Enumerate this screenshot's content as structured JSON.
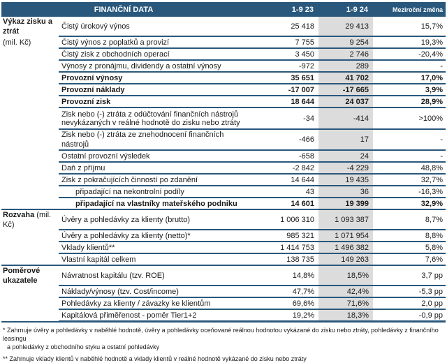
{
  "table": {
    "columns": {
      "title": "FINANČNÍ DATA",
      "period_prev": "1-9 23",
      "period_curr": "1-9 24",
      "change": "Meziroční změna"
    },
    "rows": [
      {
        "sec": "Výkaz zisku a ztrát",
        "sec_bold": true,
        "label": "Čistý úrokový výnos",
        "v23": "25 418",
        "v24": "29 413",
        "chg": "15,7%",
        "flags": []
      },
      {
        "sec": "(mil. Kč)",
        "sec_bold": false,
        "label": "Čistý výnos z poplatků a provizí",
        "v23": "7 755",
        "v24": "9 254",
        "chg": "19,3%",
        "flags": []
      },
      {
        "sec": "",
        "label": "Čistý zisk z obchodních operací",
        "v23": "3 450",
        "v24": "2 746",
        "chg": "-20,4%",
        "flags": []
      },
      {
        "sec": "",
        "label": "Výnosy z pronájmu, dividendy a ostatní výnosy",
        "v23": "-972",
        "v24": "289",
        "chg": "-",
        "flags": []
      },
      {
        "sec": "",
        "label": "Provozní výnosy",
        "v23": "35 651",
        "v24": "41 702",
        "chg": "17,0%",
        "flags": [
          "bold"
        ]
      },
      {
        "sec": "",
        "label": "Provozní náklady",
        "v23": "-17 007",
        "v24": "-17 665",
        "chg": "3,9%",
        "flags": [
          "bold"
        ]
      },
      {
        "sec": "",
        "label": "Provozní zisk",
        "v23": "18 644",
        "v24": "24 037",
        "chg": "28,9%",
        "flags": [
          "bold"
        ]
      },
      {
        "sec": "",
        "label": "Zisk nebo (-) ztráta z odúčtování finančních nástrojů nevykázaných v reálné hodnotě do zisku nebo ztráty",
        "v23": "-34",
        "v24": "-414",
        "chg": ">100%",
        "flags": [
          "twoline"
        ]
      },
      {
        "sec": "",
        "label": "Zisk nebo (-) ztráta ze znehodnocení finančních nástrojů",
        "v23": "-466",
        "v24": "17",
        "chg": "-",
        "flags": []
      },
      {
        "sec": "",
        "label": "Ostatní provozní výsledek",
        "v23": "-658",
        "v24": "24",
        "chg": "-",
        "flags": []
      },
      {
        "sec": "",
        "label": "Daň z příjmu",
        "v23": "-2 842",
        "v24": "-4 229",
        "chg": "48,8%",
        "flags": []
      },
      {
        "sec": "",
        "label": "Zisk z pokračujících činností po zdanění",
        "v23": "14 644",
        "v24": "19 435",
        "chg": "32,7%",
        "flags": []
      },
      {
        "sec": "",
        "label": "připadající na nekontrolní podíly",
        "v23": "43",
        "v24": "36",
        "chg": "-16,3%",
        "flags": [
          "indent"
        ]
      },
      {
        "sec": "",
        "label": "připadající na vlastníky mateřského podniku",
        "v23": "14 601",
        "v24": "19 399",
        "chg": "32,9%",
        "flags": [
          "indent",
          "bold",
          "fullb"
        ]
      },
      {
        "sec": "Rozvaha",
        "sec_bold": true,
        "sec_suffix": " (mil. Kč)",
        "label": "Úvěry a pohledávky za klienty (brutto)",
        "v23": "1 006 310",
        "v24": "1 093 387",
        "chg": "8,7%",
        "flags": []
      },
      {
        "sec": "",
        "label": "Úvěry a pohledávky za klienty (netto)*",
        "v23": "985 321",
        "v24": "1 071 954",
        "chg": "8,8%",
        "flags": []
      },
      {
        "sec": "",
        "label": "Vklady klientů**",
        "v23": "1 414 753",
        "v24": "1 496 382",
        "chg": "5,8%",
        "flags": []
      },
      {
        "sec": "",
        "label": "Vlastní kapitál celkem",
        "v23": "138 735",
        "v24": "149 263",
        "chg": "7,6%",
        "flags": [
          "fullb"
        ]
      },
      {
        "sec": "Poměrové ukazatele",
        "sec_bold": true,
        "label": "Návratnost kapitálu (tzv. ROE)",
        "v23": "14,8%",
        "v24": "18,5%",
        "chg": "3,7 pp",
        "flags": []
      },
      {
        "sec": "",
        "label": "Náklady/výnosy (tzv. Cost/income)",
        "v23": "47,7%",
        "v24": "42,4%",
        "chg": "-5,3 pp",
        "flags": []
      },
      {
        "sec": "",
        "label": "Pohledávky za klienty / závazky ke klientům",
        "v23": "69,6%",
        "v24": "71,6%",
        "chg": "2,0 pp",
        "flags": []
      },
      {
        "sec": "",
        "label": "Kapitálová přiměřenost - poměr Tier1+2",
        "v23": "19,2%",
        "v24": "18,3%",
        "chg": "-0,9 pp",
        "flags": [
          "fullb",
          "last"
        ]
      }
    ]
  },
  "footnotes": {
    "line1": "* Zahrnuje úvěry a pohledávky v naběhlé hodnotě, úvěry a pohledávky oceňované reálnou hodnotou vykázané do zisku nebo ztráty, pohledávky z finančního leasingu",
    "line2": "a pohledávky z obchodního styku a ostatní pohledávky",
    "line3": "** Zahrnuje vklady klientů v naběhlé hodnotě a vklady klientů v reálné hodnotě vykázané do zisku nebo ztráty"
  },
  "colors": {
    "header_bg": "#2a587c",
    "shaded_col_bg": "#dcdcdc",
    "row_line": "#2a587c"
  }
}
